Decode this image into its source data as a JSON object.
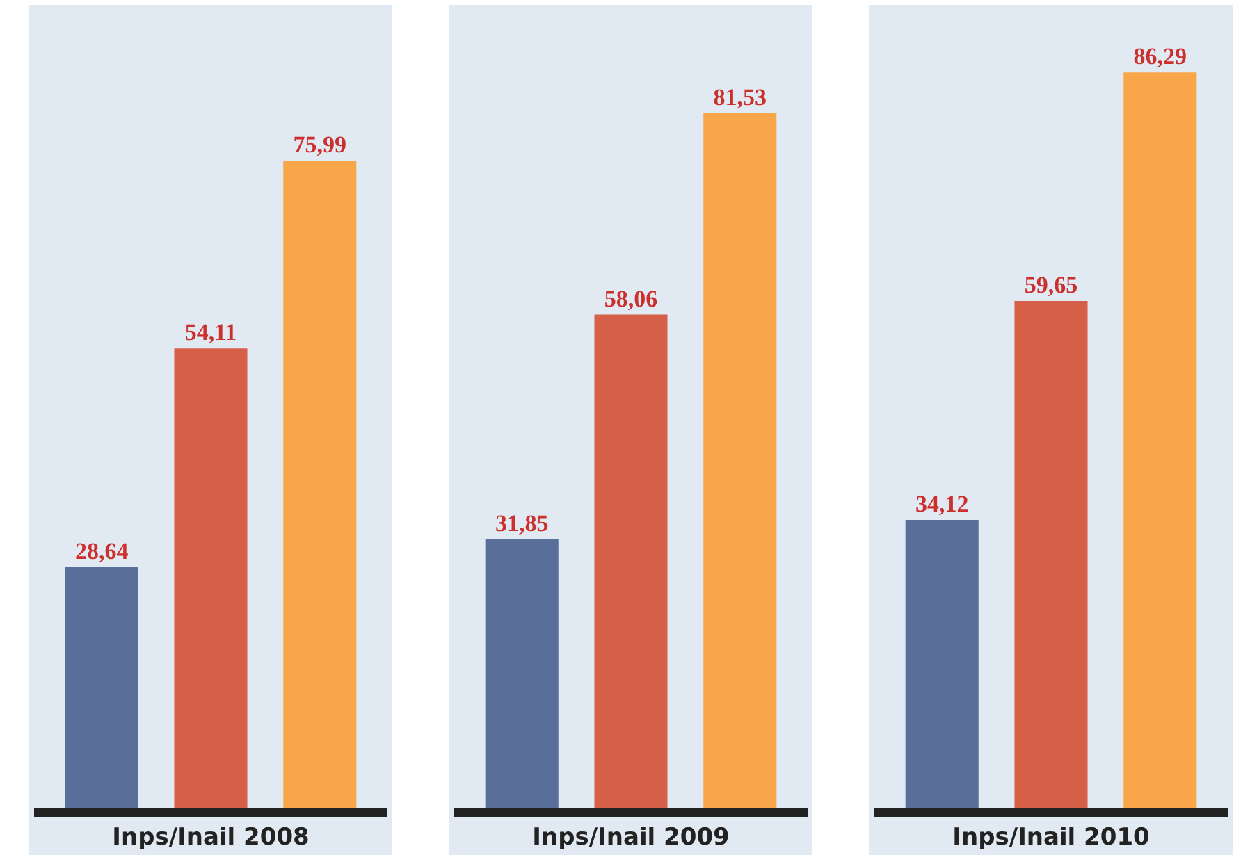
{
  "chart_data": [
    {
      "type": "bar",
      "xlabel": "Inps/Inail 2008",
      "categories": [
        null,
        null,
        null
      ],
      "values": [
        28.64,
        54.11,
        75.99
      ],
      "colors": [
        "#5a6e9a",
        "#d65f47",
        "#f9a54a"
      ],
      "value_labels": [
        "28,64",
        "54,11",
        "75,99"
      ],
      "grid": false
    },
    {
      "type": "bar",
      "xlabel": "Inps/Inail 2009",
      "categories": [
        null,
        null,
        null
      ],
      "values": [
        31.85,
        58.06,
        81.53
      ],
      "colors": [
        "#5a6e9a",
        "#d65f47",
        "#f9a54a"
      ],
      "value_labels": [
        "31,85",
        "58,06",
        "81,53"
      ],
      "grid": false
    },
    {
      "type": "bar",
      "xlabel": "Inps/Inail 2010",
      "categories": [
        null,
        null,
        null
      ],
      "values": [
        34.12,
        59.65,
        86.29
      ],
      "colors": [
        "#5a6e9a",
        "#d65f47",
        "#f9a54a"
      ],
      "value_labels": [
        "34,12",
        "59,65",
        "86,29"
      ],
      "grid": false
    }
  ]
}
